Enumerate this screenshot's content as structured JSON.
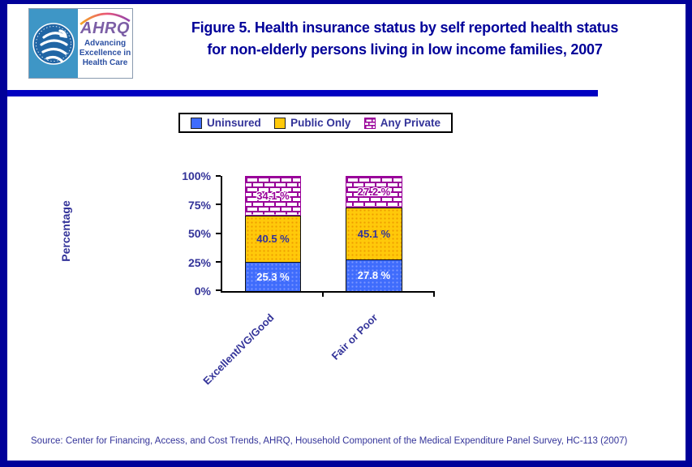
{
  "header": {
    "logo": {
      "acronym": "AHRQ",
      "tagline": "Advancing\nExcellence in\nHealth Care"
    },
    "title_lines": [
      "Figure 5. Health insurance status by self reported health status",
      "for non-elderly persons living in low income families, 2007"
    ]
  },
  "chart_data": {
    "type": "bar",
    "stacked": true,
    "title": "Figure 5. Health insurance status by self reported health status for non-elderly persons living in low income families, 2007",
    "categories": [
      "Excellent/VG/Good",
      "Fair or Poor"
    ],
    "series": [
      {
        "name": "Uninsured",
        "color": "#3F6CFC",
        "values": [
          25.3,
          27.8
        ],
        "labels": [
          "25.3 %",
          "27.8 %"
        ]
      },
      {
        "name": "Public Only",
        "color": "#FFC90A",
        "values": [
          40.5,
          45.1
        ],
        "labels": [
          "40.5 %",
          "45.1 %"
        ]
      },
      {
        "name": "Any Private",
        "color": "#FFFFFF",
        "pattern": "brick",
        "pattern_color": "#990099",
        "values": [
          34.1,
          27.2
        ],
        "labels": [
          "34.1 %",
          "27.2 %"
        ]
      }
    ],
    "ylabel": "Percentage",
    "yticks": [
      "0%",
      "25%",
      "50%",
      "75%",
      "100%"
    ],
    "ylim": [
      0,
      100
    ],
    "legend_position": "top",
    "grid": false
  },
  "footer": {
    "source": "Source: Center for Financing, Access, and Cost Trends, AHRQ, Household Component of the Medical Expenditure Panel Survey, HC-113 (2007)"
  },
  "colors": {
    "border_navy": "#000099",
    "rule_blue": "#0101C1",
    "title_navy": "#000099",
    "chart_text_navy": "#333399",
    "bar_blue": "#3F6CFC",
    "bar_yellow": "#FFC90A",
    "brick_purple": "#990099"
  }
}
